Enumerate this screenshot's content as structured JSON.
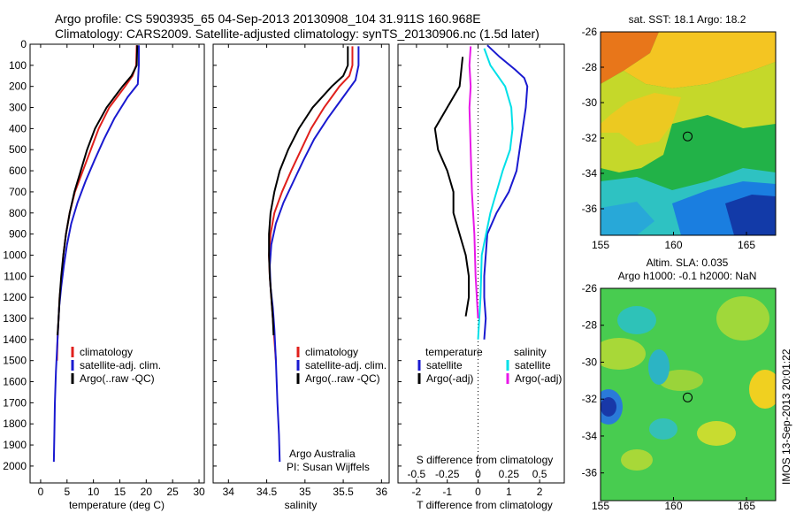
{
  "header": {
    "line1": "Argo profile: CS 5903935_65 04-Sep-2013 20130908_104 31.911S 160.968E",
    "line2": "Climatology: CARS2009. Satellite-adjusted climatology: synTS_20130906.nc (1.5d later)"
  },
  "footer": {
    "vertical_stamp": "IMOS 13-Sep-2013 20:01:22"
  },
  "colors": {
    "climatology": "#e0201c",
    "satellite": "#1a1ad0",
    "argo": "#000000",
    "salinity_satellite": "#00e0e8",
    "salinity_argo": "#e818e8",
    "zero_line": "#000000"
  },
  "chart_data": [
    {
      "type": "line",
      "id": "temperature",
      "xlabel": "temperature (deg C)",
      "xlim": [
        -2,
        31
      ],
      "ylim": [
        2080,
        0
      ],
      "xticks": [
        0,
        5,
        10,
        15,
        20,
        25,
        30
      ],
      "yticks": [
        0,
        100,
        200,
        300,
        400,
        500,
        600,
        700,
        800,
        900,
        1000,
        1100,
        1200,
        1300,
        1400,
        1500,
        1600,
        1700,
        1800,
        1900,
        2000
      ],
      "legend": [
        "climatology",
        "satellite-adj. clim.",
        "Argo(..raw -QC)"
      ],
      "series": [
        {
          "name": "climatology",
          "color": "#e0201c",
          "points": [
            [
              18.2,
              5
            ],
            [
              18.1,
              100
            ],
            [
              17.4,
              150
            ],
            [
              16.0,
              200
            ],
            [
              13.0,
              300
            ],
            [
              11.0,
              400
            ],
            [
              9.5,
              500
            ],
            [
              8.0,
              600
            ],
            [
              6.5,
              700
            ],
            [
              5.5,
              800
            ],
            [
              4.8,
              900
            ],
            [
              4.3,
              1000
            ],
            [
              4.0,
              1100
            ],
            [
              3.6,
              1200
            ],
            [
              3.4,
              1300
            ],
            [
              3.2,
              1400
            ],
            [
              3.1,
              1500
            ]
          ]
        },
        {
          "name": "satellite-adj. clim.",
          "color": "#1a1ad0",
          "points": [
            [
              18.6,
              5
            ],
            [
              18.6,
              100
            ],
            [
              18.4,
              190
            ],
            [
              16.5,
              250
            ],
            [
              14.0,
              350
            ],
            [
              12.0,
              450
            ],
            [
              10.2,
              550
            ],
            [
              8.5,
              650
            ],
            [
              7.0,
              750
            ],
            [
              5.8,
              850
            ],
            [
              5.0,
              950
            ],
            [
              4.4,
              1050
            ],
            [
              3.9,
              1150
            ],
            [
              3.5,
              1250
            ],
            [
              3.3,
              1350
            ],
            [
              3.1,
              1450
            ],
            [
              2.9,
              1550
            ],
            [
              2.7,
              1700
            ],
            [
              2.6,
              1850
            ],
            [
              2.5,
              1980
            ]
          ]
        },
        {
          "name": "Argo(..raw -QC)",
          "color": "#000000",
          "points": [
            [
              18.3,
              5
            ],
            [
              18.2,
              100
            ],
            [
              17.2,
              150
            ],
            [
              15.5,
              200
            ],
            [
              12.5,
              300
            ],
            [
              10.3,
              400
            ],
            [
              8.8,
              500
            ],
            [
              7.6,
              600
            ],
            [
              6.4,
              700
            ],
            [
              5.5,
              800
            ],
            [
              4.8,
              900
            ],
            [
              4.3,
              1000
            ],
            [
              3.9,
              1100
            ],
            [
              3.6,
              1200
            ],
            [
              3.4,
              1300
            ],
            [
              3.2,
              1380
            ]
          ]
        }
      ]
    },
    {
      "type": "line",
      "id": "salinity",
      "xlabel": "salinity",
      "xlim": [
        33.8,
        36.1
      ],
      "ylim": [
        2080,
        0
      ],
      "xticks": [
        34,
        34.5,
        35,
        35.5,
        36
      ],
      "legend": [
        "climatology",
        "satellite-adj. clim.",
        "Argo(..raw -QC)"
      ],
      "annotation": [
        "Argo Australia",
        "PI: Susan Wijffels"
      ],
      "series": [
        {
          "name": "climatology",
          "color": "#e0201c",
          "points": [
            [
              35.62,
              10
            ],
            [
              35.62,
              100
            ],
            [
              35.58,
              150
            ],
            [
              35.45,
              200
            ],
            [
              35.25,
              300
            ],
            [
              35.08,
              400
            ],
            [
              34.95,
              500
            ],
            [
              34.82,
              600
            ],
            [
              34.7,
              700
            ],
            [
              34.6,
              800
            ],
            [
              34.55,
              900
            ],
            [
              34.53,
              1000
            ],
            [
              34.54,
              1100
            ],
            [
              34.56,
              1200
            ],
            [
              34.58,
              1300
            ],
            [
              34.6,
              1400
            ],
            [
              34.62,
              1500
            ]
          ]
        },
        {
          "name": "satellite-adj. clim.",
          "color": "#1a1ad0",
          "points": [
            [
              35.7,
              10
            ],
            [
              35.7,
              100
            ],
            [
              35.66,
              170
            ],
            [
              35.5,
              250
            ],
            [
              35.3,
              350
            ],
            [
              35.12,
              450
            ],
            [
              34.98,
              550
            ],
            [
              34.85,
              650
            ],
            [
              34.72,
              750
            ],
            [
              34.62,
              850
            ],
            [
              34.56,
              950
            ],
            [
              34.54,
              1050
            ],
            [
              34.55,
              1150
            ],
            [
              34.58,
              1250
            ],
            [
              34.6,
              1350
            ],
            [
              34.62,
              1500
            ],
            [
              34.64,
              1700
            ],
            [
              34.66,
              1850
            ],
            [
              34.67,
              1980
            ]
          ]
        },
        {
          "name": "Argo(..raw -QC)",
          "color": "#000000",
          "points": [
            [
              35.56,
              10
            ],
            [
              35.56,
              100
            ],
            [
              35.5,
              150
            ],
            [
              35.35,
              200
            ],
            [
              35.1,
              300
            ],
            [
              34.92,
              400
            ],
            [
              34.78,
              500
            ],
            [
              34.67,
              600
            ],
            [
              34.6,
              700
            ],
            [
              34.55,
              800
            ],
            [
              34.53,
              900
            ],
            [
              34.53,
              1000
            ],
            [
              34.54,
              1100
            ],
            [
              34.56,
              1200
            ],
            [
              34.58,
              1300
            ],
            [
              34.59,
              1380
            ]
          ]
        }
      ]
    },
    {
      "type": "line",
      "id": "difference",
      "xlabel": "T difference from climatology",
      "xlabel_top": "S difference from climatology",
      "xlim": [
        -2.6,
        2.8
      ],
      "ylim": [
        2080,
        0
      ],
      "xticks": [
        -2,
        -1,
        0,
        1,
        2
      ],
      "xticks_s": [
        -0.5,
        -0.25,
        0,
        0.25,
        0.5
      ],
      "legend_titles": [
        "temperature",
        "salinity"
      ],
      "legend": [
        "satellite",
        "Argo(-adj)",
        "satellite",
        "Argo(-adj)"
      ],
      "series": [
        {
          "name": "temperature satellite",
          "color": "#1a1ad0",
          "points": [
            [
              0.3,
              5
            ],
            [
              0.7,
              60
            ],
            [
              1.2,
              120
            ],
            [
              1.5,
              160
            ],
            [
              1.6,
              200
            ],
            [
              1.55,
              300
            ],
            [
              1.45,
              400
            ],
            [
              1.35,
              500
            ],
            [
              1.25,
              600
            ],
            [
              1.0,
              700
            ],
            [
              0.6,
              800
            ],
            [
              0.3,
              900
            ],
            [
              0.25,
              1000
            ],
            [
              0.2,
              1100
            ],
            [
              0.2,
              1200
            ],
            [
              0.25,
              1300
            ],
            [
              0.2,
              1400
            ]
          ]
        },
        {
          "name": "temperature Argo(-adj)",
          "color": "#000000",
          "points": [
            [
              -0.5,
              60
            ],
            [
              -0.6,
              200
            ],
            [
              -1.0,
              300
            ],
            [
              -1.4,
              400
            ],
            [
              -1.3,
              500
            ],
            [
              -1.0,
              600
            ],
            [
              -0.8,
              700
            ],
            [
              -0.8,
              800
            ],
            [
              -0.6,
              900
            ],
            [
              -0.4,
              1000
            ],
            [
              -0.3,
              1100
            ],
            [
              -0.3,
              1200
            ],
            [
              -0.4,
              1290
            ]
          ]
        },
        {
          "name": "salinity satellite",
          "color": "#00e0e8",
          "points": [
            [
              0.05,
              20
            ],
            [
              0.1,
              100
            ],
            [
              0.22,
              200
            ],
            [
              0.27,
              300
            ],
            [
              0.28,
              400
            ],
            [
              0.26,
              500
            ],
            [
              0.2,
              600
            ],
            [
              0.1,
              800
            ],
            [
              0.03,
              1000
            ],
            [
              0.02,
              1200
            ],
            [
              0.0,
              1400
            ]
          ]
        },
        {
          "name": "salinity Argo(-adj)",
          "color": "#e818e8",
          "points": [
            [
              -0.06,
              10
            ],
            [
              -0.07,
              100
            ],
            [
              -0.06,
              200
            ],
            [
              -0.07,
              300
            ],
            [
              -0.06,
              500
            ],
            [
              -0.05,
              700
            ],
            [
              -0.03,
              900
            ],
            [
              -0.02,
              1100
            ],
            [
              0.0,
              1300
            ]
          ]
        }
      ]
    },
    {
      "type": "heatmap",
      "id": "sst_map",
      "title": "sat. SST: 18.1 Argo: 18.2",
      "xlim": [
        155,
        167
      ],
      "ylim": [
        -37.5,
        -26
      ],
      "xticks": [
        155,
        160,
        165
      ],
      "yticks": [
        -26,
        -28,
        -30,
        -32,
        -34,
        -36
      ],
      "argo_position": [
        160.97,
        -31.91
      ]
    },
    {
      "type": "heatmap",
      "id": "sla_map",
      "title": "Altim. SLA: 0.035",
      "subtitle": "Argo h1000: -0.1 h2000: NaN",
      "xlim": [
        155,
        167
      ],
      "ylim": [
        -37.5,
        -26
      ],
      "xticks": [
        155,
        160,
        165
      ],
      "yticks": [
        -26,
        -28,
        -30,
        -32,
        -34,
        -36
      ],
      "argo_position": [
        160.97,
        -31.91
      ]
    }
  ]
}
